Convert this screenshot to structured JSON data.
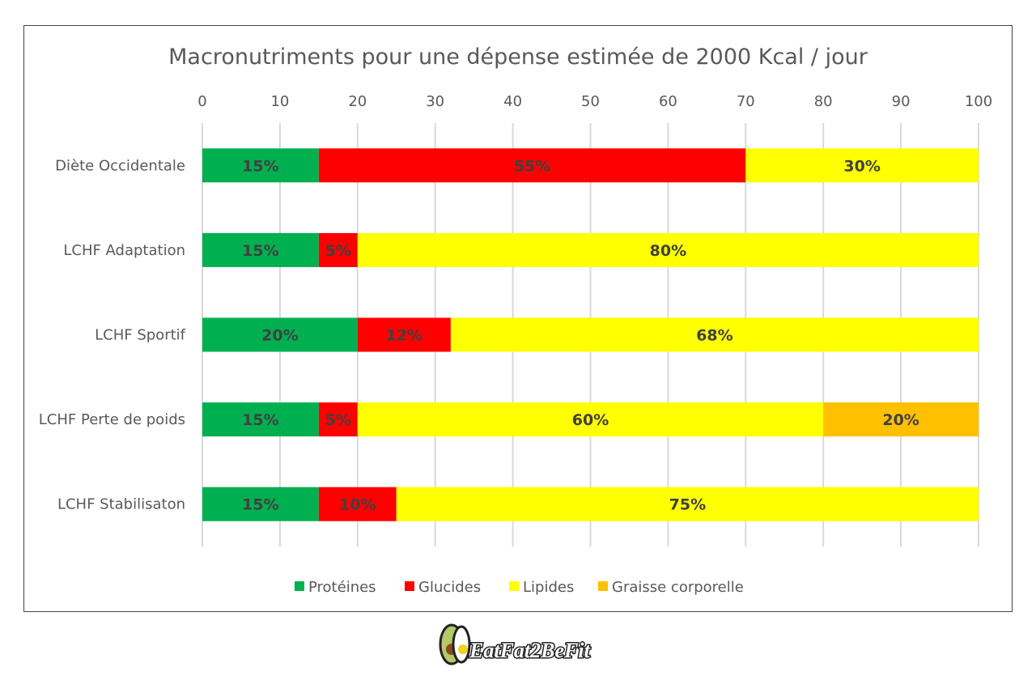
{
  "chart_data": {
    "type": "bar",
    "orientation": "horizontal",
    "stacked": true,
    "title": "Macronutriments  pour une dépense estimée de 2000 Kcal / jour",
    "xlabel": "",
    "ylabel": "",
    "xlim": [
      0,
      100
    ],
    "xticks": [
      "0",
      "10",
      "20",
      "30",
      "40",
      "50",
      "60",
      "70",
      "80",
      "90",
      "100"
    ],
    "grid": true,
    "legend_position": "bottom",
    "categories": [
      "Diète Occidentale",
      "LCHF Adaptation",
      "LCHF Sportif",
      "LCHF Perte de poids",
      "LCHF Stabilisaton"
    ],
    "series": [
      {
        "name": "Protéines",
        "color": "#00B050",
        "values": [
          15,
          15,
          20,
          15,
          15
        ],
        "labels": [
          "15%",
          "15%",
          "20%",
          "15%",
          "15%"
        ]
      },
      {
        "name": "Glucides",
        "color": "#FF0000",
        "values": [
          55,
          5,
          12,
          5,
          10
        ],
        "labels": [
          "55%",
          "5%",
          "12%",
          "5%",
          "10%"
        ]
      },
      {
        "name": "Lipides",
        "color": "#FFFF00",
        "values": [
          30,
          80,
          68,
          60,
          75
        ],
        "labels": [
          "30%",
          "80%",
          "68%",
          "60%",
          "75%"
        ]
      },
      {
        "name": "Graisse corporelle",
        "color": "#FFC000",
        "values": [
          0,
          0,
          0,
          20,
          0
        ],
        "labels": [
          "",
          "",
          "",
          "20%",
          ""
        ]
      }
    ]
  },
  "logo": {
    "text": "EatFat2BeFit"
  }
}
